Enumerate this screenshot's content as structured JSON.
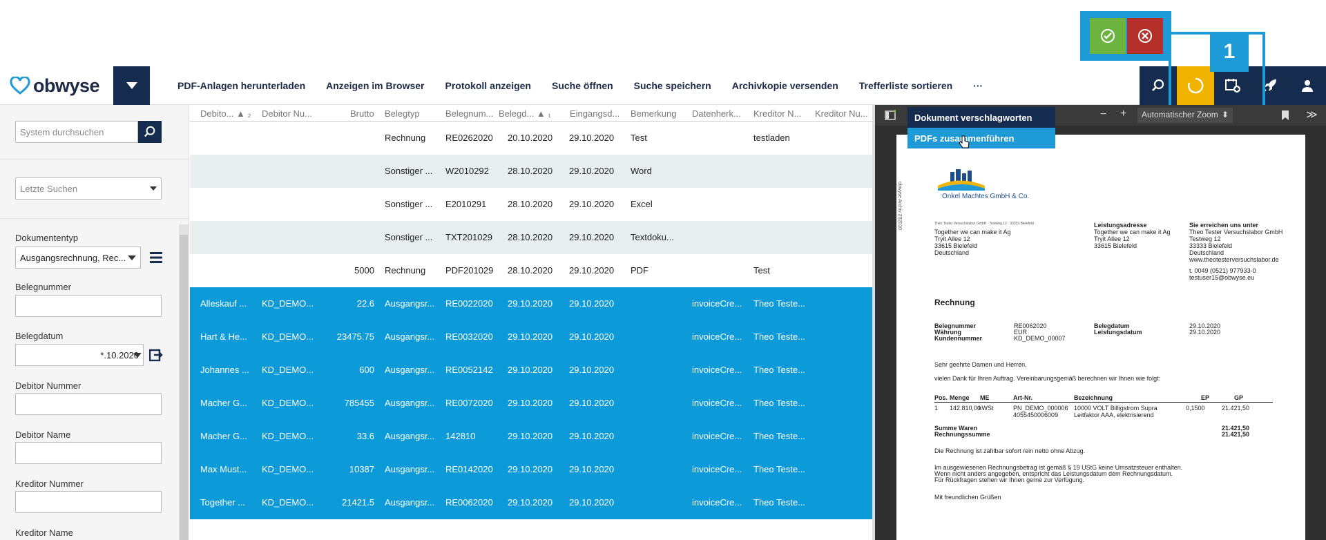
{
  "header": {
    "logo_text": "obwyse",
    "nav": [
      "PDF-Anlagen herunterladen",
      "Anzeigen im Browser",
      "Protokoll anzeigen",
      "Suche öffnen",
      "Suche speichern",
      "Archivkopie versenden",
      "Trefferliste sortieren",
      "···"
    ],
    "callout_number": "1"
  },
  "sidebar": {
    "search_placeholder": "System durchsuchen",
    "recent_placeholder": "Letzte Suchen",
    "doctype_label": "Dokumententyp",
    "doctype_value": "Ausgangsrechnung, Rec...",
    "belegnummer_label": "Belegnummer",
    "belegdatum_label": "Belegdatum",
    "belegdatum_value": "*.10.2020",
    "debitor_nummer_label": "Debitor Nummer",
    "debitor_name_label": "Debitor Name",
    "kreditor_nummer_label": "Kreditor Nummer",
    "kreditor_name_label": "Kreditor Name"
  },
  "grid": {
    "headers": [
      "Debito... ▲ ₂",
      "Debitor Nu...",
      "Brutto",
      "Belegtyp",
      "Belegnum...",
      "Belegd... ▲ ₁",
      "Eingangsd...",
      "Bemerkung",
      "Datenherk...",
      "Kreditor N...",
      "Kreditor Nu..."
    ],
    "rows": [
      {
        "deb": "",
        "debnr": "",
        "brutto": "",
        "typ": "Rechnung",
        "nr": "RE0262020",
        "bd": "20.10.2020",
        "ed": "29.10.2020",
        "bem": "Test",
        "dh": "",
        "kred": "testladen",
        "style": "normal"
      },
      {
        "deb": "",
        "debnr": "",
        "brutto": "",
        "typ": "Sonstiger ...",
        "nr": "W2010292",
        "bd": "28.10.2020",
        "ed": "29.10.2020",
        "bem": "Word",
        "dh": "",
        "kred": "",
        "style": "alt"
      },
      {
        "deb": "",
        "debnr": "",
        "brutto": "",
        "typ": "Sonstiger ...",
        "nr": "E2010291",
        "bd": "28.10.2020",
        "ed": "29.10.2020",
        "bem": "Excel",
        "dh": "",
        "kred": "",
        "style": "normal"
      },
      {
        "deb": "",
        "debnr": "",
        "brutto": "",
        "typ": "Sonstiger ...",
        "nr": "TXT201029",
        "bd": "28.10.2020",
        "ed": "29.10.2020",
        "bem": "Textdoku...",
        "dh": "",
        "kred": "",
        "style": "alt"
      },
      {
        "deb": "",
        "debnr": "",
        "brutto": "5000",
        "typ": "Rechnung",
        "nr": "PDF201029",
        "bd": "28.10.2020",
        "ed": "29.10.2020",
        "bem": "PDF",
        "dh": "",
        "kred": "Test",
        "style": "normal"
      },
      {
        "deb": "Alleskauf ...",
        "debnr": "KD_DEMO...",
        "brutto": "22.6",
        "typ": "Ausgangsr...",
        "nr": "RE0022020",
        "bd": "29.10.2020",
        "ed": "29.10.2020",
        "bem": "",
        "dh": "invoiceCre...",
        "kred": "Theo Teste...",
        "style": "sel"
      },
      {
        "deb": "Hart & He...",
        "debnr": "KD_DEMO...",
        "brutto": "23475.75",
        "typ": "Ausgangsr...",
        "nr": "RE0032020",
        "bd": "29.10.2020",
        "ed": "29.10.2020",
        "bem": "",
        "dh": "invoiceCre...",
        "kred": "Theo Teste...",
        "style": "sel"
      },
      {
        "deb": "Johannes ...",
        "debnr": "KD_DEMO...",
        "brutto": "600",
        "typ": "Ausgangsr...",
        "nr": "RE0052142",
        "bd": "29.10.2020",
        "ed": "29.10.2020",
        "bem": "",
        "dh": "invoiceCre...",
        "kred": "Theo Teste...",
        "style": "sel"
      },
      {
        "deb": "Macher G...",
        "debnr": "KD_DEMO...",
        "brutto": "785455",
        "typ": "Ausgangsr...",
        "nr": "RE0072020",
        "bd": "29.10.2020",
        "ed": "29.10.2020",
        "bem": "",
        "dh": "invoiceCre...",
        "kred": "Theo Teste...",
        "style": "sel"
      },
      {
        "deb": "Macher G...",
        "debnr": "KD_DEMO...",
        "brutto": "33.6",
        "typ": "Ausgangsr...",
        "nr": "142810",
        "bd": "29.10.2020",
        "ed": "29.10.2020",
        "bem": "",
        "dh": "invoiceCre...",
        "kred": "Theo Teste...",
        "style": "sel"
      },
      {
        "deb": "Max Must...",
        "debnr": "KD_DEMO...",
        "brutto": "10387",
        "typ": "Ausgangsr...",
        "nr": "RE0142020",
        "bd": "29.10.2020",
        "ed": "29.10.2020",
        "bem": "",
        "dh": "invoiceCre...",
        "kred": "Theo Teste...",
        "style": "sel"
      },
      {
        "deb": "Together ...",
        "debnr": "KD_DEMO...",
        "brutto": "21421.5",
        "typ": "Ausgangsr...",
        "nr": "RE0062020",
        "bd": "29.10.2020",
        "ed": "29.10.2020",
        "bem": "",
        "dh": "invoiceCre...",
        "kred": "Theo Teste...",
        "style": "sel"
      }
    ]
  },
  "viewer": {
    "zoom_value": "Automatischer Zoom",
    "zoom_minus": "−",
    "zoom_plus": "+",
    "menu": [
      "Dokument verschlagworten",
      "PDFs zusammenführen"
    ]
  },
  "pdf": {
    "company": "Onkel Machtes GmbH & Co.",
    "sender_line": "Theo Tester Versuchslabor GmbH · Testweg 12 · 33333 Bielefeld",
    "addr": [
      "Together we can make it Ag",
      "Tryit Allee 12",
      "33615 Bielefeld",
      "Deutschland"
    ],
    "leist_title": "Leistungsadresse",
    "leist": [
      "Together we can make it Ag",
      "Tryit Allee 12",
      "33615 Bielefeld"
    ],
    "contact_title": "Sie erreichen uns unter",
    "contact": [
      "Theo Tester Versuchslabor GmbH",
      "Testweg 12",
      "33333 Bielefeld",
      "Deutschland",
      "www.theotesterversuchslabor.de",
      "",
      "t. 0049 (0521) 977933-0",
      "testuser15@obwyse.eu"
    ],
    "title": "Rechnung",
    "meta_l_labels": [
      "Belegnummer",
      "Währung",
      "Kundennummer"
    ],
    "meta_l_values": [
      "RE0062020",
      "EUR",
      "KD_DEMO_00007"
    ],
    "meta_r_labels": [
      "Belegdatum",
      "Leistungsdatum"
    ],
    "meta_r_values": [
      "29.10.2020",
      "29.10.2020"
    ],
    "greet": "Sehr geehrte Damen und Herren,",
    "intro": "vielen Dank für Ihren Auftrag. Vereinbarungsgemäß berechnen wir Ihnen wie folgt:",
    "cols": [
      "Pos.",
      "Menge",
      "ME",
      "Art-Nr.",
      "Bezeichnung",
      "EP",
      "GP"
    ],
    "item1": [
      "1",
      "142.810,00",
      "kWSt",
      "PN_DEMO_000006",
      "10000 VOLT Billigstrom Supra",
      "0,1500",
      "21.421,50"
    ],
    "item2": [
      "4055450006009",
      "Leitfaktor AAA, elektrisierend"
    ],
    "sum_label": "Summe Waren",
    "sum_value": "21.421,50",
    "total_label": "Rechnungssumme",
    "total_value": "21.421,50",
    "pay": "Die Rechnung ist zahlbar sofort rein netto ohne Abzug.",
    "tax1": "Im ausgewiesenen Rechnungsbetrag ist gemäß § 19 UStG keine Umsatzsteuer enthalten.",
    "tax2": "Wenn nicht anders angegeben, entspricht das Leistungsdatum dem Rechnungsdatum.",
    "tax3": "Für Rückfragen stehen wir Ihnen gerne zur Verfügung.",
    "bye": "Mit freundlichen Grüßen",
    "side_stamp": "obwyse Archiv 202010"
  },
  "colors": {
    "navy": "#152c4e",
    "accent": "#1e9ad6",
    "green": "#6cb33f",
    "red": "#b5302a",
    "yellow": "#f0b400",
    "selected_row": "#0d9ad8"
  }
}
